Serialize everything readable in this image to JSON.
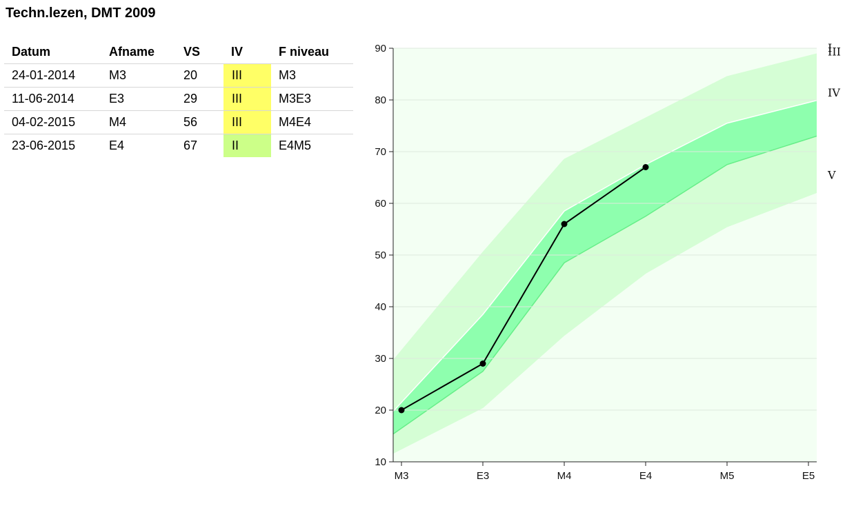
{
  "title": "Techn.lezen, DMT 2009",
  "table": {
    "headers": [
      "Datum",
      "Afname",
      "VS",
      "IV",
      "F niveau"
    ],
    "rows": [
      {
        "datum": "24-01-2014",
        "afname": "M3",
        "vs": "20",
        "iv": "III",
        "iv_color": "#ffff66",
        "f_niveau": "M3"
      },
      {
        "datum": "11-06-2014",
        "afname": "E3",
        "vs": "29",
        "iv": "III",
        "iv_color": "#ffff66",
        "f_niveau": "M3E3"
      },
      {
        "datum": "04-02-2015",
        "afname": "M4",
        "vs": "56",
        "iv": "III",
        "iv_color": "#ffff66",
        "f_niveau": "M4E4"
      },
      {
        "datum": "23-06-2015",
        "afname": "E4",
        "vs": "67",
        "iv": "II",
        "iv_color": "#ccff88",
        "f_niveau": "E4M5"
      }
    ]
  },
  "chart_data": {
    "type": "line",
    "categories": [
      "M3",
      "E3",
      "M4",
      "E4",
      "M5",
      "E5"
    ],
    "ylim": [
      10,
      90
    ],
    "yticks": [
      10,
      20,
      30,
      40,
      50,
      60,
      70,
      80,
      90
    ],
    "grid": true,
    "level_labels": [
      "I",
      "II",
      "III",
      "IV",
      "V"
    ],
    "bands": {
      "boundaries": [
        [
          31.5,
          50.5,
          68.5,
          76.5,
          84.5,
          88.5
        ],
        [
          21.5,
          38.5,
          58.5,
          67.5,
          75.5,
          79.5
        ],
        [
          16.5,
          27.5,
          48.5,
          57.5,
          67.5,
          72.5
        ],
        [
          12.5,
          20.5,
          34.5,
          46.5,
          55.5,
          61.5
        ]
      ],
      "colors": [
        "#f3fff3",
        "#d5fed5",
        "#8effae",
        "#d5fed5",
        "#f3fff3"
      ],
      "boundary_line_colors": [
        "#d5fed5",
        "#ffffff",
        "#66ee88",
        "#d5fed5"
      ]
    },
    "series": [
      {
        "x": [
          "M3",
          "E3",
          "M4",
          "E4"
        ],
        "values": [
          20,
          29,
          56,
          67
        ],
        "color": "#000000"
      }
    ]
  }
}
